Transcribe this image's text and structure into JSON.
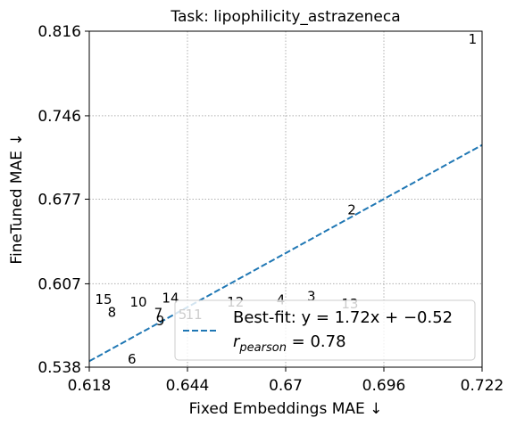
{
  "chart_data": {
    "type": "scatter",
    "title": "Task: lipophilicity_astrazeneca",
    "xlabel": "Fixed Embeddings MAE ↓",
    "ylabel": "FineTuned MAE ↓",
    "xlim": [
      0.618,
      0.722
    ],
    "ylim": [
      0.538,
      0.816
    ],
    "xticks": [
      0.618,
      0.644,
      0.67,
      0.696,
      0.722
    ],
    "xtick_labels": [
      "0.618",
      "0.644",
      "0.67",
      "0.696",
      "0.722"
    ],
    "yticks": [
      0.538,
      0.607,
      0.677,
      0.746,
      0.816
    ],
    "ytick_labels": [
      "0.538",
      "0.607",
      "0.677",
      "0.746",
      "0.816"
    ],
    "grid": true,
    "points": [
      {
        "label": "1",
        "x": 0.7195,
        "y": 0.8095
      },
      {
        "label": "2",
        "x": 0.6875,
        "y": 0.668
      },
      {
        "label": "3",
        "x": 0.6768,
        "y": 0.5965
      },
      {
        "label": "4",
        "x": 0.6687,
        "y": 0.5935
      },
      {
        "label": "5",
        "x": 0.6427,
        "y": 0.5815
      },
      {
        "label": "6",
        "x": 0.6293,
        "y": 0.5445
      },
      {
        "label": "7",
        "x": 0.6363,
        "y": 0.5825
      },
      {
        "label": "8",
        "x": 0.624,
        "y": 0.5835
      },
      {
        "label": "9",
        "x": 0.6368,
        "y": 0.5765
      },
      {
        "label": "10",
        "x": 0.631,
        "y": 0.592
      },
      {
        "label": "11",
        "x": 0.6457,
        "y": 0.5815
      },
      {
        "label": "12",
        "x": 0.6567,
        "y": 0.592
      },
      {
        "label": "13",
        "x": 0.687,
        "y": 0.5905
      },
      {
        "label": "14",
        "x": 0.6395,
        "y": 0.595
      },
      {
        "label": "15",
        "x": 0.6218,
        "y": 0.594
      }
    ],
    "fit_line": {
      "slope": 1.72,
      "intercept": -0.52,
      "style": "dashed",
      "color": "#1f77b4"
    },
    "legend": {
      "placement": "lower-right",
      "fit_label": "Best-fit: y = 1.72x + −0.52",
      "r_label": "r",
      "r_subscript": "pearson",
      "r_value": " = 0.78"
    }
  }
}
